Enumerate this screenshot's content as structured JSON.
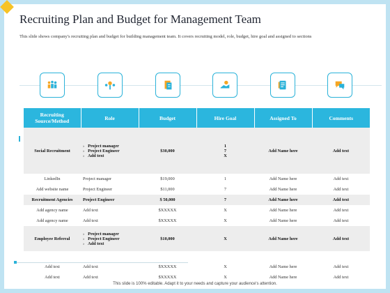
{
  "title": "Recruiting Plan and Budget for Management Team",
  "description": "This slide shows company's recruiting plan and budget for building management team. It covers recruiting model, role, budget, hire goal and assigned to sections",
  "icons": [
    "team-icon",
    "network-icon",
    "documents-icon",
    "handshake-icon",
    "clipboard-icon",
    "chat-icon"
  ],
  "table": {
    "headers": [
      "Recruiting Source/Method",
      "Role",
      "Budget",
      "Hire Goal",
      "Assigned To",
      "Comments"
    ],
    "rows": [
      {
        "source": "Social Recruitment",
        "roles": [
          "Project manager",
          "Project Engineer",
          "Add text"
        ],
        "budget": "$30,000",
        "goal": [
          "1",
          "7",
          "X"
        ],
        "assigned": "Add Name here",
        "comments": "Add text"
      },
      {
        "source": "LinkedIn",
        "role": "Project manager",
        "budget": "$19,000",
        "goal": "1",
        "assigned": "Add Name here",
        "comments": "Add text"
      },
      {
        "source": "Add website name",
        "role": "Project Engineer",
        "budget": "$11,000",
        "goal": "7",
        "assigned": "Add Name here",
        "comments": "Add text"
      },
      {
        "source": "Recruitment Agencies",
        "role": "Project Engineer",
        "budget": "$ 50,000",
        "goal": "7",
        "assigned": "Add Name here",
        "comments": "Add text"
      },
      {
        "source": "Add agency name",
        "role": "Add text",
        "budget": "$XXXXX",
        "goal": "X",
        "assigned": "Add Name here",
        "comments": "Add text"
      },
      {
        "source": "Add agency name",
        "role": "Add text",
        "budget": "$XXXXX",
        "goal": "X",
        "assigned": "Add Name here",
        "comments": "Add text"
      },
      {
        "source": "Employee Referral",
        "roles": [
          "Project manager",
          "Project Engineer",
          "Add text"
        ],
        "budget": "$10,000",
        "goal": "X",
        "assigned": "Add Name here",
        "comments": "Add text"
      },
      {
        "source": "Add text",
        "role": "Add text",
        "budget": "$XXXXX",
        "goal": "X",
        "assigned": "Add Name here",
        "comments": "Add text"
      },
      {
        "source": "Add text",
        "role": "Add text",
        "budget": "$XXXXX",
        "goal": "X",
        "assigned": "Add Name here",
        "comments": "Add text"
      }
    ]
  },
  "footer": "This slide is 100% editable. Adapt it to your needs and capture your audience's attention.",
  "colors": {
    "accent": "#2bb6de",
    "corner": "#f7c325",
    "row_grey": "#ededed"
  }
}
